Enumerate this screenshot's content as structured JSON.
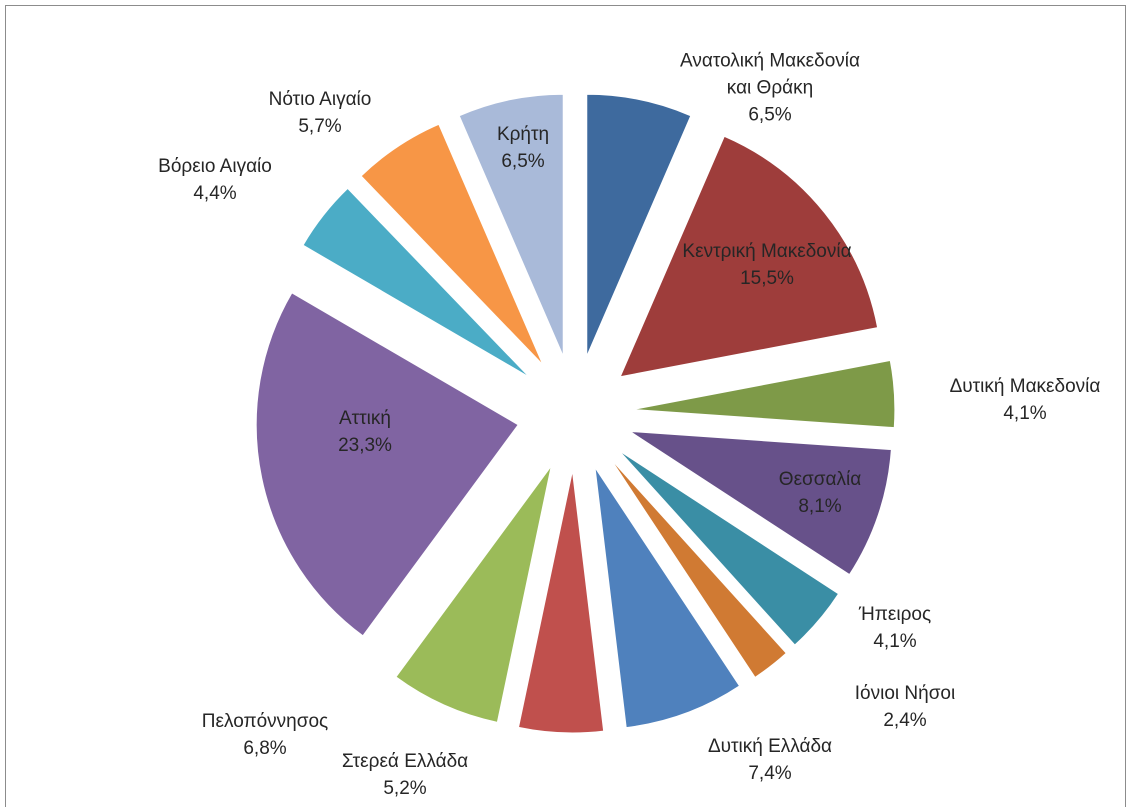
{
  "chart_data": {
    "type": "pie",
    "categories": [
      "Ανατολική Μακεδονία και Θράκη",
      "Κεντρική Μακεδονία",
      "Δυτική Μακεδονία",
      "Θεσσαλία",
      "Ήπειρος",
      "Ιόνιοι Νήσοι",
      "Δυτική Ελλάδα",
      "Στερεά Ελλάδα",
      "Πελοπόννησος",
      "Αττική",
      "Βόρειο Αιγαίο",
      "Νότιο Αιγαίο",
      "Κρήτη"
    ],
    "values": [
      6.5,
      15.5,
      4.1,
      8.1,
      4.1,
      2.4,
      7.4,
      5.2,
      6.8,
      23.3,
      4.4,
      5.7,
      6.5
    ],
    "value_labels": [
      "6,5%",
      "15,5%",
      "4,1%",
      "8,1%",
      "4,1%",
      "2,4%",
      "7,4%",
      "5,2%",
      "6,8%",
      "23,3%",
      "4,4%",
      "5,7%",
      "6,5%"
    ],
    "colors": [
      "#3e6a9e",
      "#9e3d3b",
      "#7e9a48",
      "#67518a",
      "#3a8ea5",
      "#d07a33",
      "#4f81bd",
      "#c0504d",
      "#9bbb59",
      "#8064a2",
      "#4bacc6",
      "#f79646",
      "#a9bad9"
    ]
  }
}
